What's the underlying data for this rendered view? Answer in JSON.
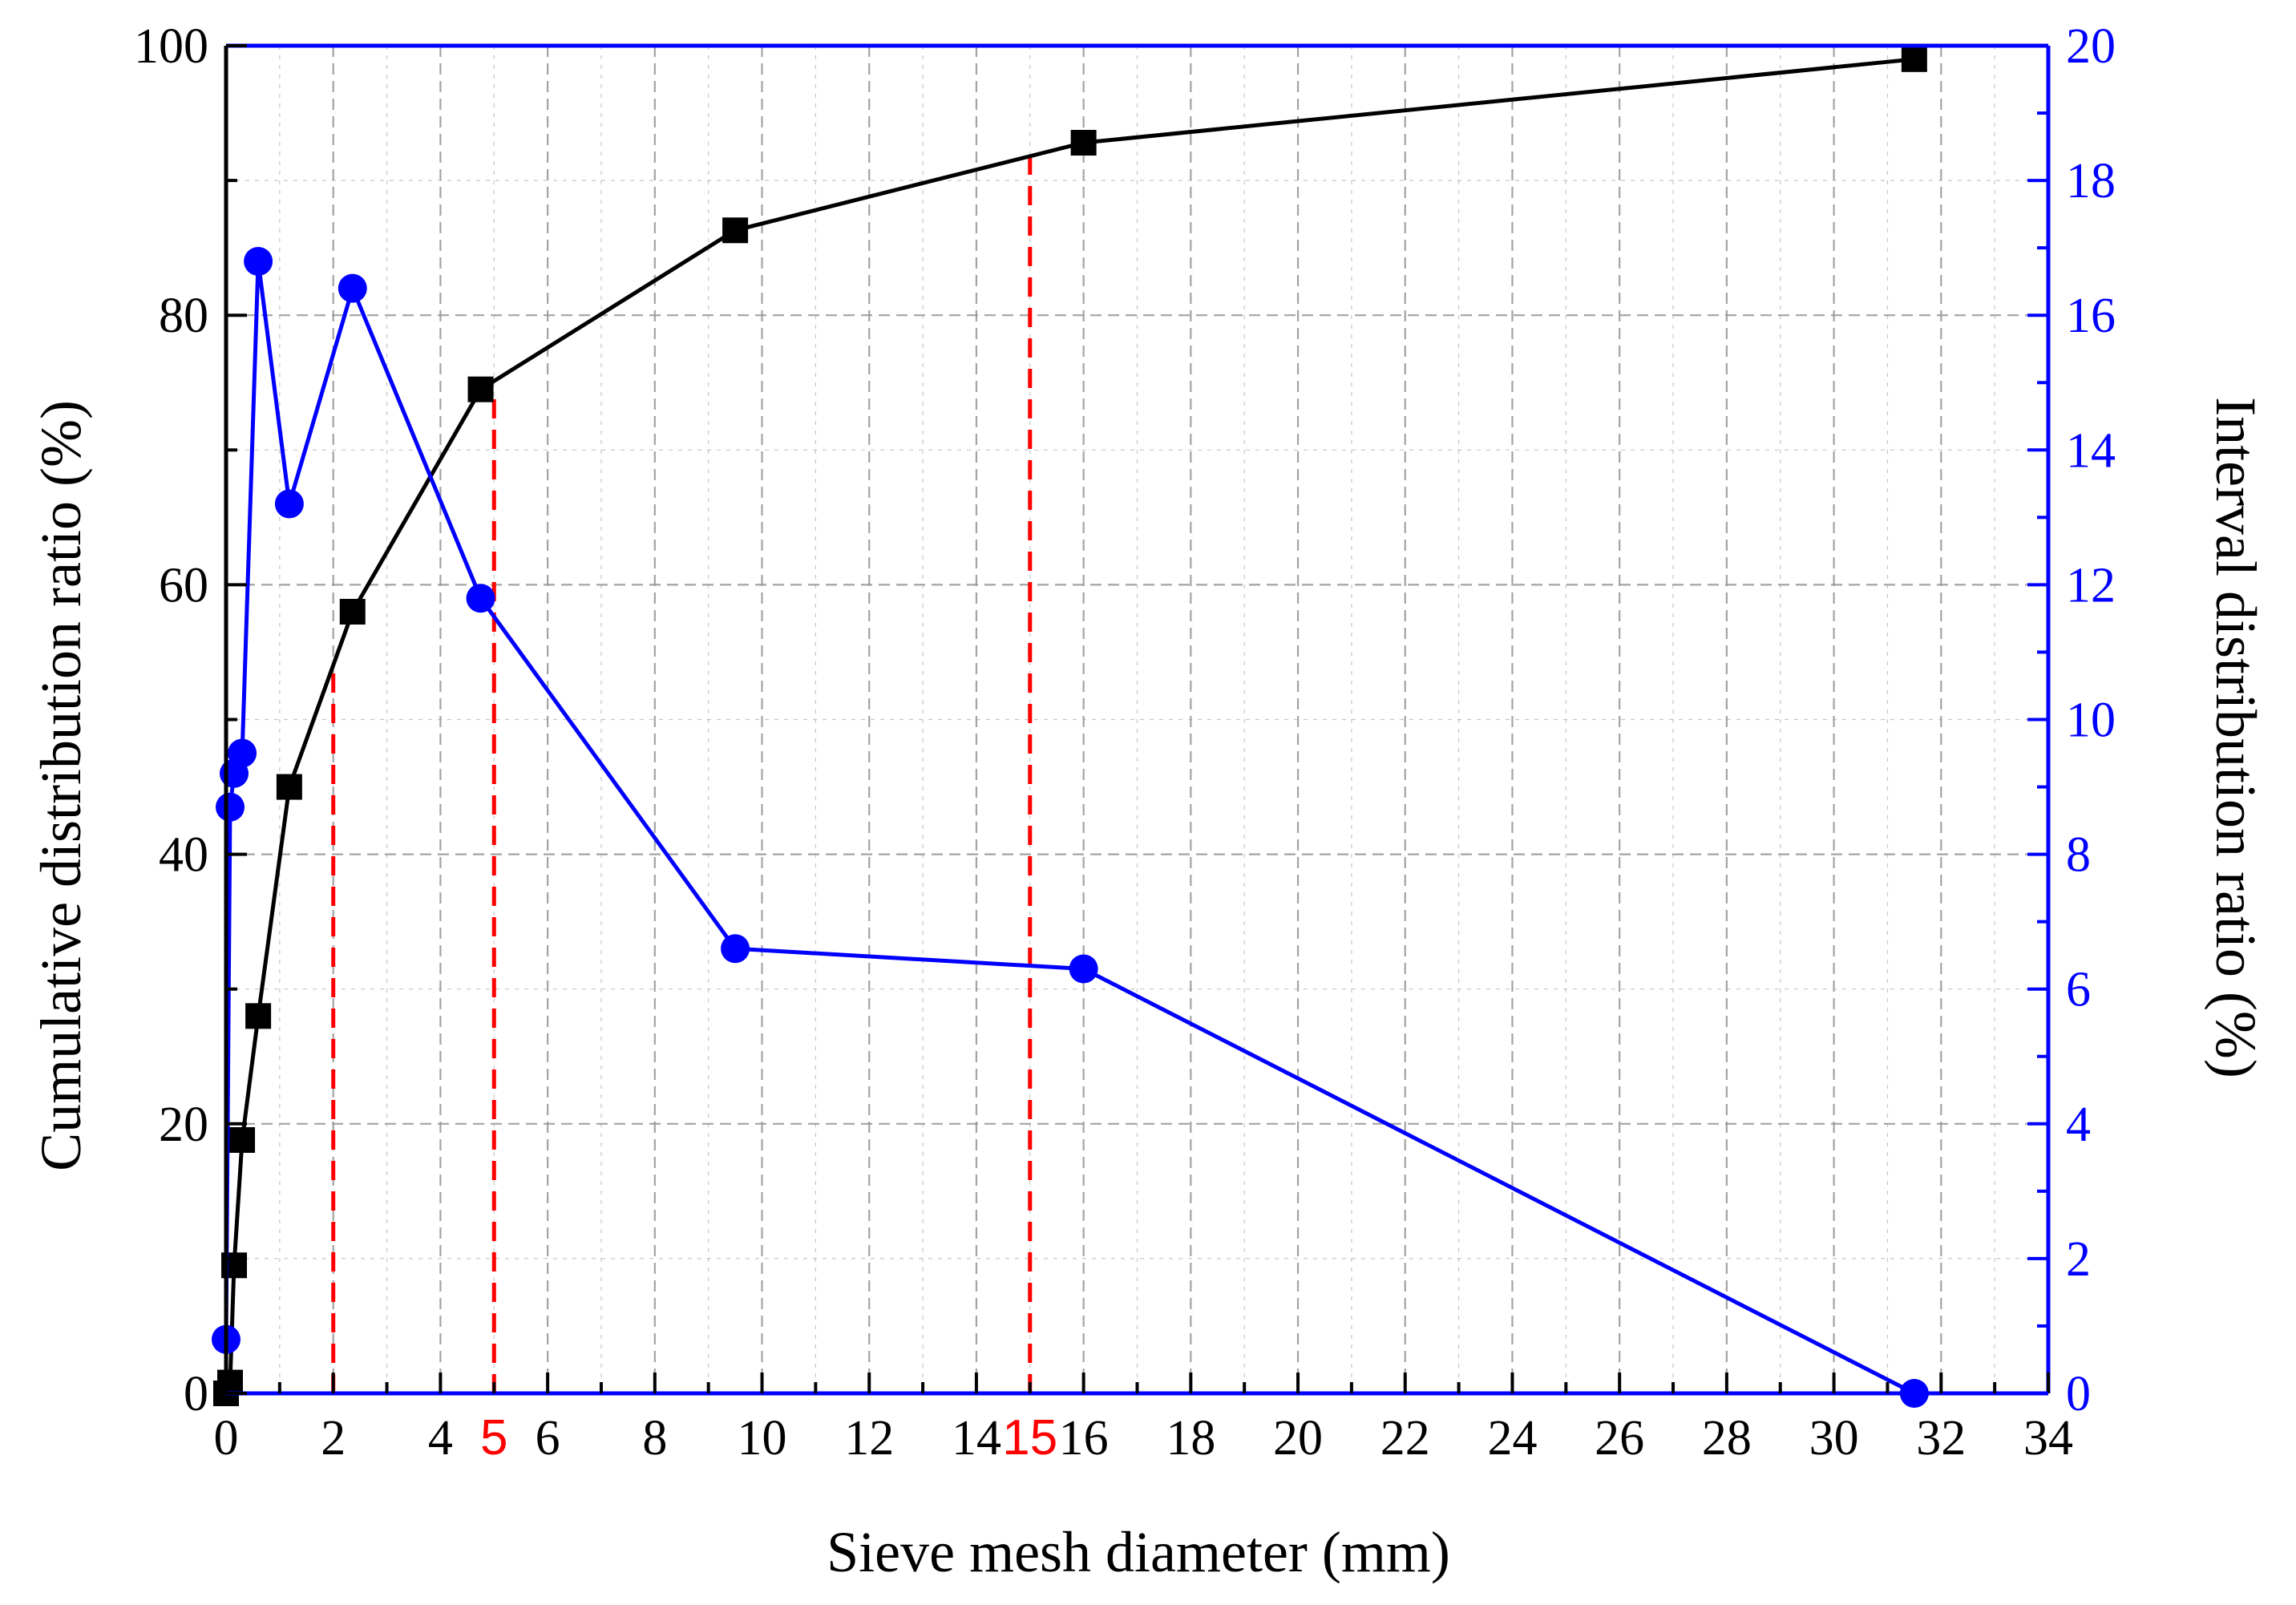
{
  "chart_data": {
    "type": "line",
    "xlabel": "Sieve mesh diameter (mm)",
    "ylabel_left": "Cumulative distribution ratio (%)",
    "ylabel_right": "Interval distribution ratio (%)",
    "xlim": [
      0,
      34
    ],
    "ylim_left": [
      0,
      100
    ],
    "ylim_right": [
      0,
      20
    ],
    "x_ticks": [
      0,
      2,
      4,
      6,
      8,
      10,
      12,
      14,
      16,
      18,
      20,
      22,
      24,
      26,
      28,
      30,
      32,
      34
    ],
    "y_left_ticks": [
      0,
      20,
      40,
      60,
      80,
      100
    ],
    "y_right_ticks": [
      0,
      2,
      4,
      6,
      8,
      10,
      12,
      14,
      16,
      18,
      20
    ],
    "grid": true,
    "series": [
      {
        "name": "Cumulative distribution ratio",
        "axis": "left",
        "marker": "square",
        "color": "#000000",
        "x": [
          0.0,
          0.075,
          0.15,
          0.3,
          0.6,
          1.18,
          2.36,
          4.75,
          9.5,
          16.0,
          31.5
        ],
        "y": [
          0.0,
          0.8,
          9.5,
          18.8,
          28.0,
          45.0,
          58.0,
          74.5,
          86.3,
          92.8,
          99.0
        ]
      },
      {
        "name": "Interval distribution ratio",
        "axis": "right",
        "marker": "circle",
        "color": "#0000ff",
        "x": [
          0.0,
          0.075,
          0.15,
          0.3,
          0.6,
          1.18,
          2.36,
          4.75,
          9.5,
          16.0,
          31.5
        ],
        "y": [
          0.8,
          8.7,
          9.2,
          9.5,
          16.8,
          13.2,
          16.4,
          11.8,
          6.6,
          6.3,
          0.0
        ]
      }
    ],
    "reference_lines": [
      {
        "x": 2,
        "y_top": 54,
        "label": ""
      },
      {
        "x": 5,
        "y_top": 74.5,
        "label": "5"
      },
      {
        "x": 15,
        "y_top": 92,
        "label": "15"
      }
    ],
    "colors": {
      "left_axis": "#000000",
      "right_axis": "#0000ff",
      "reference": "#ff0000",
      "grid": "#9a9a9a"
    }
  }
}
